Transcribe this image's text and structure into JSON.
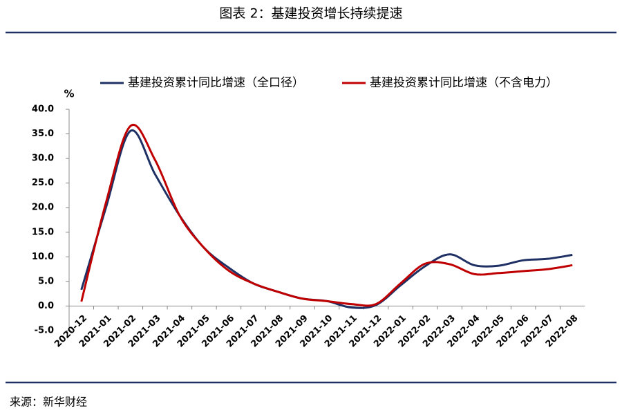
{
  "chart_data": {
    "type": "line",
    "title": "图表 2：基建投资增长持续提速",
    "y_axis_label": "%",
    "source": "来源：新华财经",
    "categories": [
      "2020-12",
      "2021-01",
      "2021-02",
      "2021-03",
      "2021-04",
      "2021-05",
      "2021-06",
      "2021-07",
      "2021-08",
      "2021-09",
      "2021-10",
      "2021-11",
      "2021-12",
      "2022-01",
      "2022-02",
      "2022-03",
      "2022-04",
      "2022-05",
      "2022-06",
      "2022-07",
      "2022-08"
    ],
    "series": [
      {
        "name": "基建投资累计同比增速（全口径）",
        "color": "#1f3064",
        "values": [
          3.3,
          20.0,
          35.6,
          26.8,
          18.4,
          11.8,
          7.8,
          4.6,
          2.9,
          1.5,
          1.0,
          -0.3,
          0.2,
          4.2,
          8.1,
          10.5,
          8.3,
          8.2,
          9.3,
          9.6,
          10.4
        ]
      },
      {
        "name": "基建投资累计同比增速（不含电力）",
        "color": "#c00000",
        "values": [
          0.9,
          21.0,
          36.6,
          29.7,
          18.4,
          11.8,
          7.2,
          4.6,
          2.9,
          1.5,
          1.0,
          0.4,
          0.4,
          4.6,
          8.6,
          8.5,
          6.5,
          6.7,
          7.1,
          7.5,
          8.3
        ]
      }
    ],
    "ylim": [
      -5,
      40
    ],
    "yticks": [
      {
        "value": -5,
        "label": "-5.0"
      },
      {
        "value": 0,
        "label": "0.0"
      },
      {
        "value": 5,
        "label": "5.0"
      },
      {
        "value": 10,
        "label": "10.0"
      },
      {
        "value": 15,
        "label": "15.0"
      },
      {
        "value": 20,
        "label": "20.0"
      },
      {
        "value": 25,
        "label": "25.0"
      },
      {
        "value": 30,
        "label": "30.0"
      },
      {
        "value": 35,
        "label": "35.0"
      },
      {
        "value": 40,
        "label": "40.0"
      }
    ]
  }
}
